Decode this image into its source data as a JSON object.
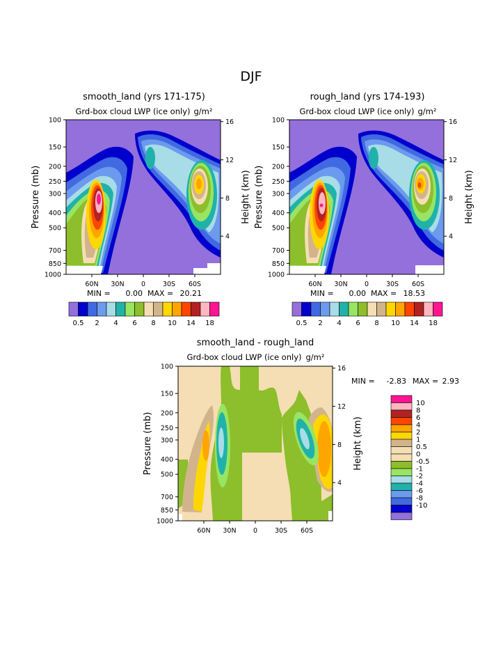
{
  "figure": {
    "title": "DJF"
  },
  "palettes": {
    "abs": [
      "#9370DB",
      "#0000CD",
      "#4169E1",
      "#6C9AEE",
      "#A8DCE6",
      "#20B2AA",
      "#98E463",
      "#8DBE2B",
      "#F5DEB3",
      "#D2B48C",
      "#FFD700",
      "#FFA500",
      "#FF4500",
      "#B22222",
      "#FFB6C1",
      "#FF1493"
    ],
    "diff": [
      "#9370DB",
      "#0000CD",
      "#4169E1",
      "#6C9AEE",
      "#20B2AA",
      "#A8DCE6",
      "#98E463",
      "#8DBE2B",
      "#F5DEB3",
      "#F5DEB3",
      "#D2B48C",
      "#FFD700",
      "#FFA500",
      "#FF4500",
      "#B22222",
      "#FFB6C1",
      "#FF1493"
    ]
  },
  "chart_data": [
    {
      "type": "contour",
      "title": "smooth_land (yrs 171-175)",
      "subtitle": "Grd-box cloud LWP (ice only)",
      "units": "g/m²",
      "ylabel": "Pressure (mb)",
      "ylabel_right": "Height (km)",
      "x_ticks": [
        "60N",
        "30N",
        "0",
        "30S",
        "60S"
      ],
      "x_values": [
        60,
        30,
        0,
        -30,
        -60
      ],
      "xlim": [
        90,
        -90
      ],
      "y_ticks": [
        "100",
        "150",
        "200",
        "250",
        "300",
        "400",
        "500",
        "700",
        "850",
        "1000"
      ],
      "y_values": [
        100,
        150,
        200,
        250,
        300,
        400,
        500,
        700,
        850,
        1000
      ],
      "ylim": [
        100,
        1000
      ],
      "y_scale": "log",
      "y_right_ticks": [
        "16",
        "12",
        "8",
        "4"
      ],
      "y_right_values": [
        16,
        12,
        8,
        4
      ],
      "min_label": "MIN =",
      "min": "0.00",
      "max_label": "MAX =",
      "max": "20.21",
      "colorbar_labels": [
        "0.5",
        "2",
        "4",
        "6",
        "8",
        "10",
        "14",
        "18"
      ],
      "peaks": [
        {
          "lat": 55,
          "p": 560,
          "value": 20.21
        },
        {
          "lat": -58,
          "p": 490,
          "value": 11
        },
        {
          "lat": -5,
          "p": 270,
          "value": 4
        }
      ]
    },
    {
      "type": "contour",
      "title": "rough_land (yrs 174-193)",
      "subtitle": "Grd-box cloud LWP (ice only)",
      "units": "g/m²",
      "ylabel": "Pressure (mb)",
      "ylabel_right": "Height (km)",
      "x_ticks": [
        "60N",
        "30N",
        "0",
        "30S",
        "60S"
      ],
      "x_values": [
        60,
        30,
        0,
        -30,
        -60
      ],
      "xlim": [
        90,
        -90
      ],
      "y_ticks": [
        "100",
        "150",
        "200",
        "250",
        "300",
        "400",
        "500",
        "700",
        "850",
        "1000"
      ],
      "y_values": [
        100,
        150,
        200,
        250,
        300,
        400,
        500,
        700,
        850,
        1000
      ],
      "ylim": [
        100,
        1000
      ],
      "y_scale": "log",
      "y_right_ticks": [
        "16",
        "12",
        "8",
        "4"
      ],
      "y_right_values": [
        16,
        12,
        8,
        4
      ],
      "min_label": "MIN =",
      "min": "0.00",
      "max_label": "MAX =",
      "max": "18.53",
      "colorbar_labels": [
        "0.5",
        "2",
        "4",
        "6",
        "8",
        "10",
        "14",
        "18"
      ],
      "peaks": [
        {
          "lat": 54,
          "p": 560,
          "value": 18.53
        },
        {
          "lat": -60,
          "p": 490,
          "value": 14
        },
        {
          "lat": -5,
          "p": 270,
          "value": 4
        }
      ]
    },
    {
      "type": "contour",
      "title": "smooth_land - rough_land",
      "subtitle": "Grd-box cloud LWP (ice only)",
      "units": "g/m²",
      "ylabel": "Pressure (mb)",
      "ylabel_right": "Height (km)",
      "x_ticks": [
        "60N",
        "30N",
        "0",
        "30S",
        "60S"
      ],
      "x_values": [
        60,
        30,
        0,
        -30,
        -60
      ],
      "xlim": [
        90,
        -90
      ],
      "y_ticks": [
        "100",
        "150",
        "200",
        "250",
        "300",
        "400",
        "500",
        "700",
        "850",
        "1000"
      ],
      "y_values": [
        100,
        150,
        200,
        250,
        300,
        400,
        500,
        700,
        850,
        1000
      ],
      "ylim": [
        100,
        1000
      ],
      "y_scale": "log",
      "y_right_ticks": [
        "16",
        "12",
        "8",
        "4"
      ],
      "y_right_values": [
        16,
        12,
        8,
        4
      ],
      "min_label": "MIN =",
      "min": "-2.83",
      "max_label": "MAX =",
      "max": "2.93",
      "colorbar_labels": [
        "10",
        "8",
        "6",
        "4",
        "2",
        "1",
        "0.5",
        "0",
        "-0.5",
        "-1",
        "-2",
        "-4",
        "-6",
        "-8",
        "-10"
      ],
      "peaks": [
        {
          "lat": 63,
          "p": 620,
          "value": 2.93
        },
        {
          "lat": 38,
          "p": 480,
          "value": -2.83
        },
        {
          "lat": -55,
          "p": 470,
          "value": -2.5
        },
        {
          "lat": -75,
          "p": 560,
          "value": 2.4
        }
      ]
    }
  ]
}
